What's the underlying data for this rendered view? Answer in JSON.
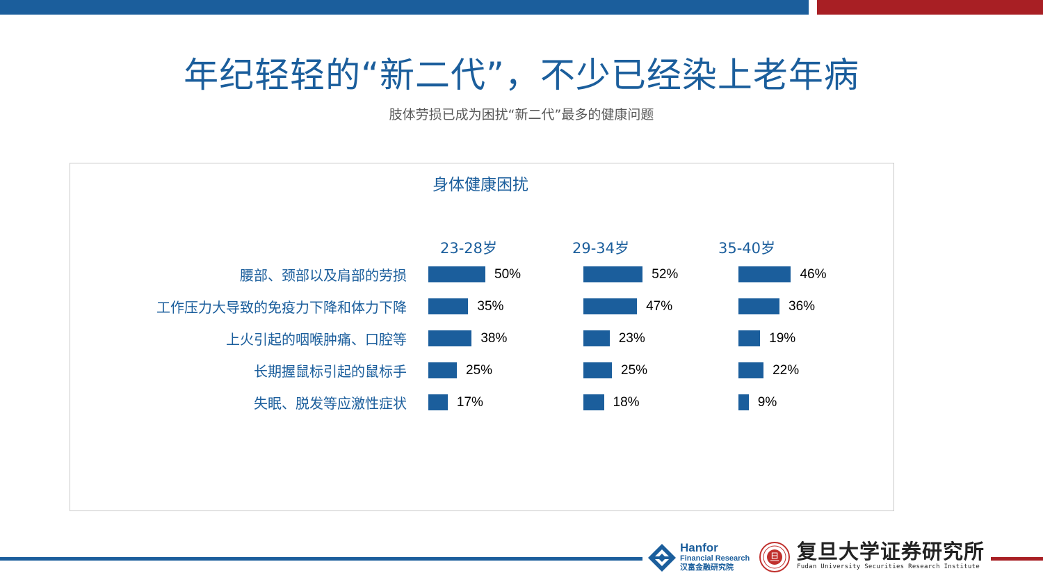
{
  "title": "年纪轻轻的“新二代”，不少已经染上老年病",
  "subtitle": "肢体劳损已成为困扰“新二代”最多的健康问题",
  "colors": {
    "primary": "#1b5e9c",
    "accent": "#a81f24"
  },
  "chart_data": {
    "type": "bar",
    "orientation": "horizontal",
    "title": "身体健康困扰",
    "categories": [
      "腰部、颈部以及肩部的劳损",
      "工作压力大导致的免疫力下降和体力下降",
      "上火引起的咽喉肿痛、口腔等",
      "长期握鼠标引起的鼠标手",
      "失眠、脱发等应激性症状"
    ],
    "series": [
      {
        "name": "23-28岁",
        "values": [
          50,
          35,
          38,
          25,
          17
        ],
        "labels": [
          "50%",
          "35%",
          "38%",
          "25%",
          "17%"
        ]
      },
      {
        "name": "29-34岁",
        "values": [
          52,
          47,
          23,
          25,
          18
        ],
        "labels": [
          "52%",
          "47%",
          "23%",
          "25%",
          "18%"
        ]
      },
      {
        "name": "35-40岁",
        "values": [
          46,
          36,
          19,
          22,
          9
        ],
        "labels": [
          "46%",
          "36%",
          "19%",
          "22%",
          "9%"
        ]
      }
    ],
    "unit": "%",
    "xlim": [
      0,
      100
    ]
  },
  "footer": {
    "hanfor": {
      "name": "Hanfor",
      "sub": "Financial Research",
      "cn": "汉富金融研究院"
    },
    "fudan": {
      "cn": "复旦大学证券研究所",
      "en": "Fudan University Securities Research Institute",
      "seal_text": "旦"
    }
  }
}
